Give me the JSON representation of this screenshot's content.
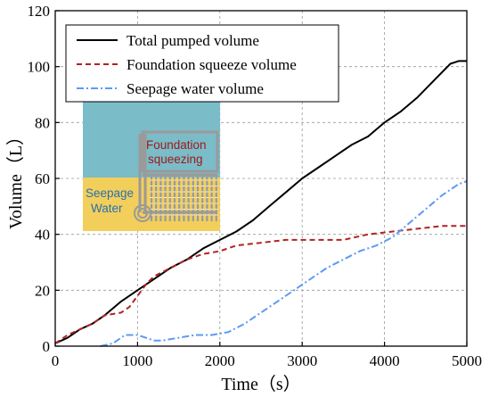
{
  "chart_data": {
    "type": "line",
    "xlabel": "Time（s）",
    "ylabel": "Volume（L）",
    "xlim": [
      0,
      5000
    ],
    "ylim": [
      0,
      120
    ],
    "x_ticks": [
      "0",
      "1000",
      "2000",
      "3000",
      "4000",
      "5000"
    ],
    "y_ticks": [
      "0",
      "20",
      "40",
      "60",
      "80",
      "100",
      "120"
    ],
    "grid": true,
    "legend_position": "top-left",
    "series": [
      {
        "name": "Total pumped volume",
        "color": "#000000",
        "style": "solid",
        "points": [
          [
            0,
            1
          ],
          [
            150,
            3
          ],
          [
            300,
            6
          ],
          [
            450,
            8
          ],
          [
            600,
            11
          ],
          [
            800,
            16
          ],
          [
            1000,
            20
          ],
          [
            1200,
            24
          ],
          [
            1400,
            28
          ],
          [
            1600,
            31
          ],
          [
            1800,
            35
          ],
          [
            2000,
            38
          ],
          [
            2200,
            41
          ],
          [
            2400,
            45
          ],
          [
            2600,
            50
          ],
          [
            2800,
            55
          ],
          [
            3000,
            60
          ],
          [
            3200,
            64
          ],
          [
            3400,
            68
          ],
          [
            3600,
            72
          ],
          [
            3800,
            75
          ],
          [
            4000,
            80
          ],
          [
            4200,
            84
          ],
          [
            4400,
            89
          ],
          [
            4600,
            95
          ],
          [
            4800,
            101
          ],
          [
            4900,
            102
          ],
          [
            5000,
            102
          ]
        ]
      },
      {
        "name": "Foundation squeeze volume",
        "color": "#b22222",
        "style": "dashed",
        "points": [
          [
            0,
            1
          ],
          [
            150,
            4
          ],
          [
            300,
            6
          ],
          [
            450,
            8
          ],
          [
            600,
            11
          ],
          [
            800,
            12
          ],
          [
            900,
            14
          ],
          [
            1000,
            18
          ],
          [
            1100,
            22
          ],
          [
            1200,
            25
          ],
          [
            1400,
            28
          ],
          [
            1600,
            31
          ],
          [
            1800,
            33
          ],
          [
            2000,
            34
          ],
          [
            2200,
            36
          ],
          [
            2500,
            37
          ],
          [
            2800,
            38
          ],
          [
            3200,
            38
          ],
          [
            3500,
            38
          ],
          [
            3800,
            40
          ],
          [
            4100,
            41
          ],
          [
            4400,
            42
          ],
          [
            4700,
            43
          ],
          [
            5000,
            43
          ]
        ]
      },
      {
        "name": "Seepage water volume",
        "color": "#5b9bf5",
        "style": "dashdot",
        "points": [
          [
            550,
            0
          ],
          [
            700,
            1
          ],
          [
            850,
            4
          ],
          [
            1000,
            4
          ],
          [
            1100,
            3
          ],
          [
            1200,
            2
          ],
          [
            1300,
            2
          ],
          [
            1500,
            3
          ],
          [
            1700,
            4
          ],
          [
            1900,
            4
          ],
          [
            2100,
            5
          ],
          [
            2300,
            8
          ],
          [
            2500,
            12
          ],
          [
            2700,
            16
          ],
          [
            2900,
            20
          ],
          [
            3100,
            24
          ],
          [
            3300,
            28
          ],
          [
            3500,
            31
          ],
          [
            3700,
            34
          ],
          [
            3900,
            36
          ],
          [
            4100,
            39
          ],
          [
            4300,
            44
          ],
          [
            4500,
            49
          ],
          [
            4700,
            54
          ],
          [
            4900,
            58
          ],
          [
            5000,
            59
          ]
        ]
      }
    ]
  },
  "inset": {
    "label_squeeze_line1": "Foundation",
    "label_squeeze_line2": "squeezing",
    "label_seepage_line1": "Seepage",
    "label_seepage_line2": "Water",
    "water_color": "#7bbcc9",
    "ground_color": "#f2cf5b",
    "pipe_color": "#9a9a9a",
    "squeeze_text_color": "#a01818",
    "seepage_text_color": "#2a6fb0"
  }
}
